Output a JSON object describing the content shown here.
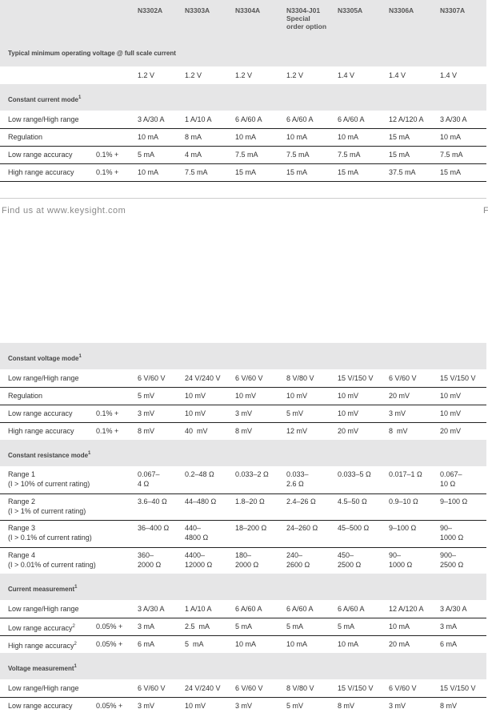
{
  "header": {
    "columns": [
      "N3302A",
      "N3303A",
      "N3304A",
      "N3304-J01\nSpecial\norder option",
      "N3305A",
      "N3306A",
      "N3307A"
    ]
  },
  "sections": [
    {
      "title": "Typical minimum operating voltage @ full scale current",
      "rows": [
        {
          "values": [
            "1.2 V",
            "1.2 V",
            "1.2 V",
            "1.2 V",
            "1.4 V",
            "1.4 V",
            "1.4 V"
          ]
        }
      ]
    },
    {
      "title": "Constant current mode",
      "note": "1",
      "rows": [
        {
          "label": "Low range/High range",
          "values": [
            "3 A/30 A",
            "1 A/10 A",
            "6 A/60 A",
            "6 A/60 A",
            "6 A/60 A",
            "12 A/120 A",
            "3 A/30 A"
          ]
        },
        {
          "label": "Regulation",
          "values": [
            "10 mA",
            "8 mA",
            "10 mA",
            "10 mA",
            "10 mA",
            "15 mA",
            "10 mA"
          ]
        },
        {
          "label": "Low range accuracy",
          "prefix": "0.1% +",
          "values": [
            "5 mA",
            "4 mA",
            "7.5 mA",
            "7.5 mA",
            "7.5 mA",
            "15 mA",
            "7.5 mA"
          ]
        },
        {
          "label": "High range accuracy",
          "prefix": "0.1% +",
          "values": [
            "10 mA",
            "7.5 mA",
            "15 mA",
            "15 mA",
            "15 mA",
            "37.5 mA",
            "15 mA"
          ]
        }
      ]
    },
    {
      "title": "Constant voltage mode",
      "note": "1",
      "rows": [
        {
          "label": "Low range/High range",
          "values": [
            "6 V/60 V",
            "24 V/240 V",
            "6 V/60 V",
            "8 V/80 V",
            "15 V/150 V",
            "6 V/60 V",
            "15 V/150 V"
          ]
        },
        {
          "label": "Regulation",
          "values": [
            "5 mV",
            "10 mV",
            "10 mV",
            "10 mV",
            "10 mV",
            "20 mV",
            "10 mV"
          ]
        },
        {
          "label": "Low range accuracy",
          "prefix": "0.1% +",
          "values": [
            "3 mV",
            "10 mV",
            "3 mV",
            "5 mV",
            "10 mV",
            "3 mV",
            "10 mV"
          ]
        },
        {
          "label": "High range accuracy",
          "prefix": "0.1% +",
          "values": [
            "8 mV",
            "40  mV",
            "8 mV",
            "12 mV",
            "20 mV",
            "8  mV",
            "20 mV"
          ]
        }
      ]
    },
    {
      "title": "Constant resistance mode",
      "note": "1",
      "rows": [
        {
          "label": "Range 1\n(I > 10% of current rating)",
          "values": [
            "0.067–\n4 Ω",
            "0.2–48 Ω",
            "0.033–2 Ω",
            "0.033–\n2.6 Ω",
            "0.033–5 Ω",
            "0.017–1 Ω",
            "0.067–\n10 Ω"
          ]
        },
        {
          "label": "Range 2\n(I > 1% of current rating)",
          "values": [
            "3.6–40 Ω",
            "44–480 Ω",
            "1.8–20 Ω",
            "2.4–26 Ω",
            "4.5–50 Ω",
            "0.9–10 Ω",
            "9–100 Ω"
          ]
        },
        {
          "label": "Range 3\n(I > 0.1% of current rating)",
          "values": [
            "36–400 Ω",
            "440–\n4800 Ω",
            "18–200 Ω",
            "24–260 Ω",
            "45–500 Ω",
            "9–100 Ω",
            "90–\n1000 Ω"
          ]
        },
        {
          "label": "Range 4\n(I > 0.01% of current rating)",
          "values": [
            "360–\n2000 Ω",
            "4400–\n12000 Ω",
            "180–\n2000 Ω",
            "240–\n2600 Ω",
            "450–\n2500 Ω",
            "90–\n1000 Ω",
            "900–\n2500 Ω"
          ]
        }
      ]
    },
    {
      "title": "Current measurement",
      "note": "1",
      "rows": [
        {
          "label": "Low range/High range",
          "values": [
            "3 A/30 A",
            "1 A/10 A",
            "6 A/60 A",
            "6 A/60 A",
            "6 A/60 A",
            "12 A/120 A",
            "3 A/30 A"
          ]
        },
        {
          "label": "Low range accuracy",
          "note": "2",
          "prefix": "0.05% +",
          "values": [
            "3 mA",
            "2.5  mA",
            "5 mA",
            "5 mA",
            "5 mA",
            "10 mA",
            "3 mA"
          ]
        },
        {
          "label": "High range accuracy",
          "note": "2",
          "prefix": "0.05% +",
          "values": [
            "6 mA",
            "5  mA",
            "10 mA",
            "10 mA",
            "10 mA",
            "20 mA",
            "6 mA"
          ]
        }
      ]
    },
    {
      "title": "Voltage measurement",
      "note": "1",
      "rows": [
        {
          "label": "Low range/High range",
          "values": [
            "6 V/60 V",
            "24 V/240 V",
            "6 V/60 V",
            "8 V/80 V",
            "15 V/150 V",
            "6 V/60 V",
            "15 V/150 V"
          ]
        },
        {
          "label": "Low range accuracy",
          "prefix": "0.05% +",
          "values": [
            "3 mV",
            "10 mV",
            "3 mV",
            "5 mV",
            "8 mV",
            "3 mV",
            "8 mV"
          ]
        }
      ]
    }
  ],
  "footer": {
    "text": "Find us at www.keysight.com",
    "page_edge": "F"
  }
}
